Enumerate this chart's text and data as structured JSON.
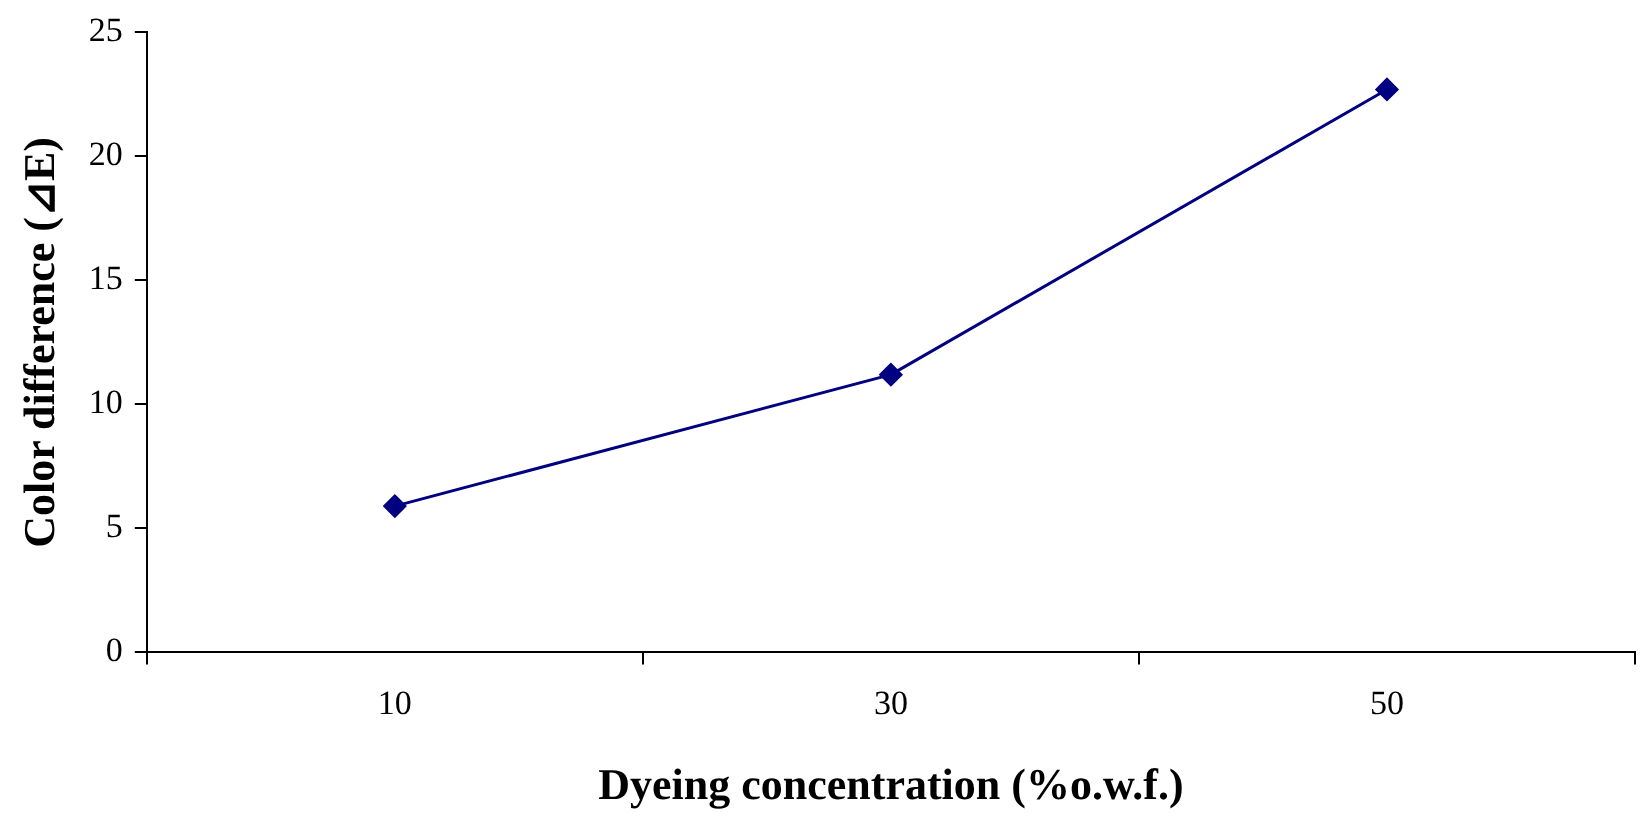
{
  "chart_data": {
    "type": "line",
    "xlabel": "Dyeing concentration (%o.w.f.)",
    "ylabel": "Color difference (⊿E)",
    "categories": [
      "10",
      "30",
      "50"
    ],
    "series": [
      {
        "color": "#000080",
        "values": [
          5.9,
          11.2,
          22.7
        ]
      }
    ],
    "ylim": [
      0,
      25
    ],
    "yticks": [
      0,
      5,
      10,
      15,
      20,
      25
    ],
    "grid": false,
    "legend": false,
    "marker": "diamond",
    "line_style": "solid"
  }
}
